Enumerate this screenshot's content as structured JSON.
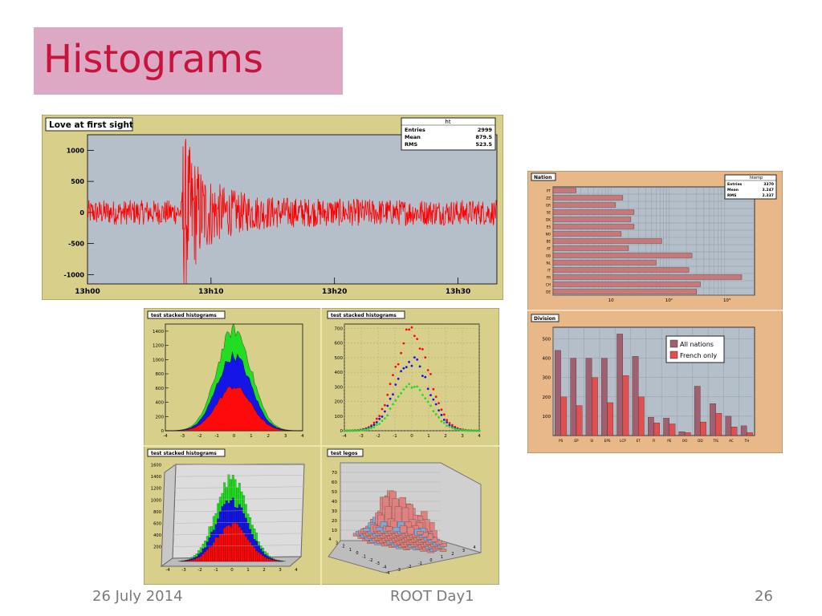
{
  "slide": {
    "title": "Histograms",
    "footer_date": "26 July 2014",
    "footer_center": "ROOT Day1",
    "footer_page": "26"
  },
  "colors": {
    "title_bg": "#dca8c3",
    "title_text": "#c8143c",
    "root_frame": "#d8d08a",
    "plot_bg": "#b4bfc9",
    "signal": "#ff0000",
    "green": "#22dd22",
    "blue": "#1515e8",
    "red": "#ff0a0a",
    "bar_dark": "#a06070",
    "bar_light": "#e05050",
    "nation_frame": "#e8b888"
  },
  "chart_data": [
    {
      "id": "signal",
      "type": "line",
      "title": "Love at first sight",
      "stats": {
        "name": "ht",
        "rows": [
          [
            "Entries",
            "2999"
          ],
          [
            "Mean",
            "879.5"
          ],
          [
            "RMS",
            "523.5"
          ]
        ]
      },
      "x_ticks": [
        "13h00",
        "13h10",
        "13h20",
        "13h30"
      ],
      "y_ticks": [
        "1000",
        "500",
        "0",
        "-500",
        "-1000"
      ],
      "ylim": [
        -1150,
        1250
      ],
      "burst_at_fraction": 0.23
    },
    {
      "id": "stack-filled",
      "type": "area",
      "title": "test stacked histograms",
      "x_ticks": [
        "-4",
        "-3",
        "-2",
        "-1",
        "0",
        "1",
        "2",
        "3",
        "4"
      ],
      "y_ticks": [
        "1400",
        "1200",
        "1000",
        "800",
        "600",
        "400",
        "200",
        "0"
      ],
      "ylim": [
        0,
        1500
      ],
      "series": [
        {
          "values": [
            620
          ]
        },
        {
          "values": [
            1050
          ]
        },
        {
          "values": [
            1420
          ]
        }
      ]
    },
    {
      "id": "stack-points",
      "type": "scatter",
      "title": "test stacked histograms",
      "x_ticks": [
        "-4",
        "-3",
        "-2",
        "-1",
        "0",
        "1",
        "2",
        "3",
        "4"
      ],
      "y_ticks": [
        "700",
        "600",
        "500",
        "400",
        "300",
        "200",
        "100",
        "0"
      ],
      "ylim": [
        0,
        730
      ],
      "series": [
        {
          "values": [
            680
          ]
        },
        {
          "values": [
            480
          ]
        },
        {
          "values": [
            320
          ]
        }
      ]
    },
    {
      "id": "stack-lego",
      "type": "bar",
      "title": "test stacked histograms",
      "x_ticks": [
        "-4",
        "-3",
        "-2",
        "-1",
        "0",
        "1",
        "2",
        "3",
        "4"
      ],
      "y_ticks": [
        "1600",
        "1400",
        "1200",
        "1000",
        "800",
        "600",
        "400",
        "200"
      ],
      "ylim": [
        0,
        1650
      ]
    },
    {
      "id": "lego2d",
      "type": "heatmap",
      "title": "test legos",
      "z_ticks": [
        "70",
        "60",
        "50",
        "40",
        "30",
        "20",
        "10"
      ],
      "x_ticks": [
        "4",
        "3",
        "2",
        "1",
        "0",
        "-1",
        "-2",
        "-3",
        "-4"
      ],
      "y_ticks": [
        "-4",
        "-3",
        "-2",
        "-1",
        "0",
        "1",
        "2",
        "3",
        "4"
      ]
    },
    {
      "id": "nation",
      "type": "bar",
      "title": "Nation",
      "stats": {
        "name": "htemp",
        "rows": [
          [
            "Entries",
            "3370"
          ],
          [
            "Mean",
            "3.247"
          ],
          [
            "RMS",
            "2.337"
          ]
        ]
      },
      "categories": [
        "PT",
        "ZZ",
        "GR",
        "SE",
        "DK",
        "ES",
        "NO",
        "BE",
        "AT",
        "GB",
        "NL",
        "IT",
        "FR",
        "CH",
        "DE"
      ],
      "values": [
        2.5,
        16,
        12,
        25,
        22,
        25,
        15,
        75,
        20,
        250,
        60,
        220,
        1800,
        350,
        300
      ],
      "x_ticks": [
        "10",
        "10²",
        "10³"
      ],
      "xscale": "log",
      "xlim": [
        1,
        3000
      ]
    },
    {
      "id": "division",
      "type": "bar",
      "title": "Division",
      "categories": [
        "PS",
        "EP",
        "SI",
        "EPS",
        "LCP",
        "ET",
        "FI",
        "PE",
        "OO",
        "DD",
        "TIS",
        "AC",
        "TH"
      ],
      "series": [
        {
          "name": "All nations",
          "values": [
            440,
            400,
            400,
            400,
            525,
            410,
            95,
            90,
            20,
            255,
            165,
            100,
            50
          ]
        },
        {
          "name": "French only",
          "values": [
            200,
            155,
            300,
            170,
            310,
            200,
            65,
            60,
            15,
            70,
            115,
            45,
            15
          ]
        }
      ],
      "y_ticks": [
        "500",
        "400",
        "300",
        "200",
        "100"
      ],
      "ylim": [
        0,
        560
      ]
    }
  ]
}
